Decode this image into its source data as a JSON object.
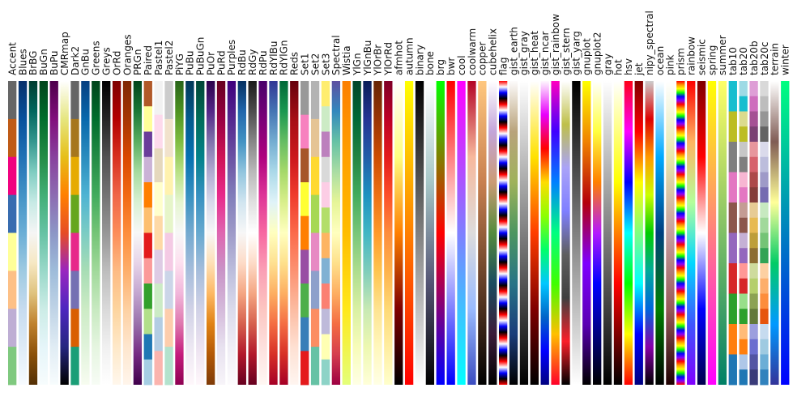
{
  "chart_data": {
    "type": "heatmap",
    "title": "",
    "xlabel": "",
    "ylabel": "",
    "orientation": "vertical-strips",
    "colormaps": [
      {
        "name": "Accent",
        "kind": "seg",
        "colors": [
          "#666666",
          "#bf5b17",
          "#f0027f",
          "#386cb0",
          "#ffff99",
          "#fdc086",
          "#beaed4",
          "#7fc97f"
        ]
      },
      {
        "name": "Blues",
        "kind": "grad",
        "colors": [
          "#08306b",
          "#08519c",
          "#2171b5",
          "#4292c6",
          "#6baed6",
          "#9ecae1",
          "#c6dbef",
          "#deebf7",
          "#f7fbff"
        ]
      },
      {
        "name": "BrBG",
        "kind": "grad",
        "colors": [
          "#003c30",
          "#01665e",
          "#35978f",
          "#80cdc1",
          "#c7eae5",
          "#f5f5f5",
          "#f6e8c3",
          "#dfc27d",
          "#bf812d",
          "#8c510a",
          "#543005"
        ]
      },
      {
        "name": "BuGn",
        "kind": "grad",
        "colors": [
          "#00441b",
          "#006d2c",
          "#238b45",
          "#41ae76",
          "#66c2a4",
          "#99d8c9",
          "#ccece6",
          "#e5f5f9",
          "#f7fcfd"
        ]
      },
      {
        "name": "BuPu",
        "kind": "grad",
        "colors": [
          "#4d004b",
          "#810f7c",
          "#88419d",
          "#8c6bb1",
          "#8c96c6",
          "#9ebcda",
          "#bfd3e6",
          "#e0ecf4",
          "#f7fcfd"
        ]
      },
      {
        "name": "CMRmap",
        "kind": "grad",
        "colors": [
          "#ffffff",
          "#e6e680",
          "#e6bf1a",
          "#ff8000",
          "#e64d26",
          "#9926bf",
          "#4d26bf",
          "#262680",
          "#000000"
        ]
      },
      {
        "name": "Dark2",
        "kind": "seg",
        "colors": [
          "#666666",
          "#a6761d",
          "#e6ab02",
          "#66a61e",
          "#e7298a",
          "#7570b3",
          "#d95f02",
          "#1b9e77"
        ]
      },
      {
        "name": "GnBu",
        "kind": "grad",
        "colors": [
          "#084081",
          "#0868ac",
          "#2b8cbe",
          "#4eb3d3",
          "#7bccc4",
          "#a8ddb5",
          "#ccebc5",
          "#e0f3db",
          "#f7fcf0"
        ]
      },
      {
        "name": "Greens",
        "kind": "grad",
        "colors": [
          "#00441b",
          "#006d2c",
          "#238b45",
          "#41ab5d",
          "#74c476",
          "#a1d99b",
          "#c7e9c0",
          "#e5f5e0",
          "#f7fcf5"
        ]
      },
      {
        "name": "Greys",
        "kind": "grad",
        "colors": [
          "#000000",
          "#252525",
          "#525252",
          "#737373",
          "#969696",
          "#bdbdbd",
          "#d9d9d9",
          "#f0f0f0",
          "#ffffff"
        ]
      },
      {
        "name": "OrRd",
        "kind": "grad",
        "colors": [
          "#7f0000",
          "#b30000",
          "#d7301f",
          "#ef6548",
          "#fc8d59",
          "#fdbb84",
          "#fdd49e",
          "#fee8c8",
          "#fff7ec"
        ]
      },
      {
        "name": "Oranges",
        "kind": "grad",
        "colors": [
          "#7f2704",
          "#a63603",
          "#d94801",
          "#f16913",
          "#fd8d3c",
          "#fdae6b",
          "#fdd0a2",
          "#fee6ce",
          "#fff5eb"
        ]
      },
      {
        "name": "PRGn",
        "kind": "grad",
        "colors": [
          "#00441b",
          "#1b7837",
          "#5aae61",
          "#a6dba0",
          "#d9f0d3",
          "#f7f7f7",
          "#e7d4e8",
          "#c2a5cf",
          "#9970ab",
          "#762a83",
          "#40004b"
        ]
      },
      {
        "name": "Paired",
        "kind": "seg",
        "colors": [
          "#b15928",
          "#ffff99",
          "#6a3d9a",
          "#cab2d6",
          "#ff7f00",
          "#fdbf6f",
          "#e31a1c",
          "#fb9a99",
          "#33a02c",
          "#b2df8a",
          "#1f78b4",
          "#a6cee3"
        ]
      },
      {
        "name": "Pastel1",
        "kind": "seg",
        "colors": [
          "#f2f2f2",
          "#fddaec",
          "#e5d8bd",
          "#ffffcc",
          "#fed9a6",
          "#decbe4",
          "#ccebc5",
          "#b3cde3",
          "#fbb4ae"
        ]
      },
      {
        "name": "Pastel2",
        "kind": "seg",
        "colors": [
          "#cccccc",
          "#f1e2cc",
          "#fff2ae",
          "#e6f5c9",
          "#f4cae4",
          "#cbd5e8",
          "#fdcdac",
          "#b3e2cd"
        ]
      },
      {
        "name": "PiYG",
        "kind": "grad",
        "colors": [
          "#276419",
          "#4d9221",
          "#7fbc41",
          "#b8e186",
          "#e6f5d0",
          "#f7f7f7",
          "#fde0ef",
          "#f1b6da",
          "#de77ae",
          "#c51b7d",
          "#8e0152"
        ]
      },
      {
        "name": "PuBu",
        "kind": "grad",
        "colors": [
          "#023858",
          "#045a8d",
          "#0570b0",
          "#3690c0",
          "#74a9cf",
          "#a6bddb",
          "#d0d1e6",
          "#ece7f2",
          "#fff7fb"
        ]
      },
      {
        "name": "PuBuGn",
        "kind": "grad",
        "colors": [
          "#014636",
          "#016c59",
          "#02818a",
          "#3690c0",
          "#67a9cf",
          "#a6bddb",
          "#d0d1e6",
          "#ece2f0",
          "#fff7fb"
        ]
      },
      {
        "name": "PuOr",
        "kind": "grad",
        "colors": [
          "#2d004b",
          "#542788",
          "#8073ac",
          "#b2abd2",
          "#d8daeb",
          "#f7f7f7",
          "#fee0b6",
          "#fdb863",
          "#e08214",
          "#b35806",
          "#7f3b08"
        ]
      },
      {
        "name": "PuRd",
        "kind": "grad",
        "colors": [
          "#67001f",
          "#980043",
          "#ce1256",
          "#e7298a",
          "#df65b0",
          "#c994c7",
          "#d4b9da",
          "#e7e1ef",
          "#f7f4f9"
        ]
      },
      {
        "name": "Purples",
        "kind": "grad",
        "colors": [
          "#3f007d",
          "#54278f",
          "#6a51a3",
          "#807dba",
          "#9e9ac8",
          "#bcbddc",
          "#dadaeb",
          "#efedf5",
          "#fcfbfd"
        ]
      },
      {
        "name": "RdBu",
        "kind": "grad",
        "colors": [
          "#053061",
          "#2166ac",
          "#4393c3",
          "#92c5de",
          "#d1e5f0",
          "#f7f7f7",
          "#fddbc7",
          "#f4a582",
          "#d6604d",
          "#b2182b",
          "#67001f"
        ]
      },
      {
        "name": "RdGy",
        "kind": "grad",
        "colors": [
          "#1a1a1a",
          "#4d4d4d",
          "#878787",
          "#bababa",
          "#e0e0e0",
          "#ffffff",
          "#fddbc7",
          "#f4a582",
          "#d6604d",
          "#b2182b",
          "#67001f"
        ]
      },
      {
        "name": "RdPu",
        "kind": "grad",
        "colors": [
          "#49006a",
          "#7a0177",
          "#ae017e",
          "#dd3497",
          "#f768a1",
          "#fa9fb5",
          "#fcc5c0",
          "#fde0dd",
          "#fff7f3"
        ]
      },
      {
        "name": "RdYlBu",
        "kind": "grad",
        "colors": [
          "#313695",
          "#4575b4",
          "#74add1",
          "#abd9e9",
          "#e0f3f8",
          "#ffffbf",
          "#fee090",
          "#fdae61",
          "#f46d43",
          "#d73027",
          "#a50026"
        ]
      },
      {
        "name": "RdYlGn",
        "kind": "grad",
        "colors": [
          "#006837",
          "#1a9850",
          "#66bd63",
          "#a6d96a",
          "#d9ef8b",
          "#ffffbf",
          "#fee08b",
          "#fdae61",
          "#f46d43",
          "#d73027",
          "#a50026"
        ]
      },
      {
        "name": "Reds",
        "kind": "grad",
        "colors": [
          "#67000d",
          "#a50f15",
          "#cb181d",
          "#ef3b2c",
          "#fb6a4a",
          "#fc9272",
          "#fcbba1",
          "#fee0d2",
          "#fff5f0"
        ]
      },
      {
        "name": "Set1",
        "kind": "seg",
        "colors": [
          "#999999",
          "#f781bf",
          "#a65628",
          "#ffff33",
          "#ff7f00",
          "#984ea3",
          "#4daf4a",
          "#377eb8",
          "#e41a1c"
        ]
      },
      {
        "name": "Set2",
        "kind": "seg",
        "colors": [
          "#b3b3b3",
          "#e5c494",
          "#ffd92f",
          "#a6d854",
          "#e78ac3",
          "#8da0cb",
          "#fc8d62",
          "#66c2a5"
        ]
      },
      {
        "name": "Set3",
        "kind": "seg",
        "colors": [
          "#ffed6f",
          "#ccebc5",
          "#bc80bd",
          "#d9d9d9",
          "#fccde5",
          "#b3de69",
          "#fdb462",
          "#80b1d3",
          "#fb8072",
          "#bebada",
          "#ffffb3",
          "#8dd3c7"
        ]
      },
      {
        "name": "Spectral",
        "kind": "grad",
        "colors": [
          "#5e4fa2",
          "#3288bd",
          "#66c2a5",
          "#abdda4",
          "#e6f598",
          "#ffffbf",
          "#fee08b",
          "#fdae61",
          "#f46d43",
          "#d53e4f",
          "#9e0142"
        ]
      },
      {
        "name": "Wistia",
        "kind": "grad",
        "colors": [
          "#fc7f00",
          "#ffa000",
          "#ffbd00",
          "#ffe81a",
          "#e4ff7a"
        ]
      },
      {
        "name": "YlGn",
        "kind": "grad",
        "colors": [
          "#004529",
          "#006837",
          "#238443",
          "#41ab5d",
          "#78c679",
          "#addd8e",
          "#d9f0a3",
          "#f7fcb9",
          "#ffffe5"
        ]
      },
      {
        "name": "YlGnBu",
        "kind": "grad",
        "colors": [
          "#081d58",
          "#253494",
          "#225ea8",
          "#1d91c0",
          "#41b6c4",
          "#7fcdbb",
          "#c7e9b4",
          "#edf8b1",
          "#ffffd9"
        ]
      },
      {
        "name": "YlOrBr",
        "kind": "grad",
        "colors": [
          "#662506",
          "#993404",
          "#cc4c02",
          "#ec7014",
          "#fe9929",
          "#fec44f",
          "#fee391",
          "#fff7bc",
          "#ffffe5"
        ]
      },
      {
        "name": "YlOrRd",
        "kind": "grad",
        "colors": [
          "#800026",
          "#bd0026",
          "#e31a1c",
          "#fc4e2a",
          "#fd8d3c",
          "#feb24c",
          "#fed976",
          "#ffeda0",
          "#ffffcc"
        ]
      },
      {
        "name": "afmhot",
        "kind": "grad",
        "colors": [
          "#ffffff",
          "#ffff80",
          "#ff8000",
          "#800000",
          "#000000"
        ]
      },
      {
        "name": "autumn",
        "kind": "grad",
        "colors": [
          "#ffff00",
          "#ff0000"
        ]
      },
      {
        "name": "binary",
        "kind": "grad",
        "colors": [
          "#000000",
          "#ffffff"
        ]
      },
      {
        "name": "bone",
        "kind": "grad",
        "colors": [
          "#ffffff",
          "#a7c7c7",
          "#545474",
          "#000000"
        ]
      },
      {
        "name": "brg",
        "kind": "grad",
        "colors": [
          "#00ff00",
          "#ff0000",
          "#0000ff"
        ]
      },
      {
        "name": "bwr",
        "kind": "grad",
        "colors": [
          "#ff0000",
          "#ffffff",
          "#0000ff"
        ]
      },
      {
        "name": "cool",
        "kind": "grad",
        "colors": [
          "#ff00ff",
          "#00ffff"
        ]
      },
      {
        "name": "coolwarm",
        "kind": "grad",
        "colors": [
          "#b40426",
          "#f7b89c",
          "#dddcdc",
          "#9abbff",
          "#3b4cc0"
        ]
      },
      {
        "name": "copper",
        "kind": "grad",
        "colors": [
          "#ffc77f",
          "#c88050",
          "#643f28",
          "#000000"
        ]
      },
      {
        "name": "cubehelix",
        "kind": "grad",
        "colors": [
          "#ffffff",
          "#c3a5d9",
          "#cb9b75",
          "#548b3d",
          "#1a4c5f",
          "#3b1c3a",
          "#000000"
        ]
      },
      {
        "name": "flag",
        "kind": "repeat",
        "repeats": 13,
        "colors": [
          "#ff0000",
          "#ffffff",
          "#0000ff",
          "#000000",
          "#ff0000"
        ]
      },
      {
        "name": "gist_earth",
        "kind": "grad",
        "colors": [
          "#fdfbfb",
          "#b9a37b",
          "#9fb25b",
          "#4c9660",
          "#287486",
          "#1a3c7a",
          "#000000"
        ]
      },
      {
        "name": "gist_gray",
        "kind": "grad",
        "colors": [
          "#ffffff",
          "#000000"
        ]
      },
      {
        "name": "gist_heat",
        "kind": "grad",
        "colors": [
          "#ffffff",
          "#ffe100",
          "#ff3d00",
          "#800000",
          "#000000"
        ]
      },
      {
        "name": "gist_ncar",
        "kind": "grad",
        "colors": [
          "#fef8fe",
          "#e800fc",
          "#ff0000",
          "#ffdd00",
          "#8cff00",
          "#00ff6a",
          "#00c7ff",
          "#0064c8",
          "#0000ff",
          "#000080"
        ]
      },
      {
        "name": "gist_rainbow",
        "kind": "grad",
        "colors": [
          "#ff00bf",
          "#4000ff",
          "#0080ff",
          "#00ff80",
          "#40ff00",
          "#ffbf00",
          "#ff0029"
        ]
      },
      {
        "name": "gist_stern",
        "kind": "grad",
        "colors": [
          "#ffffff",
          "#bfc04a",
          "#aaa3f8",
          "#7f7fff",
          "#5f5f5f",
          "#404040",
          "#fa1f2a",
          "#000000"
        ]
      },
      {
        "name": "gist_yarg",
        "kind": "grad",
        "colors": [
          "#000000",
          "#ffffff"
        ]
      },
      {
        "name": "gnuplot",
        "kind": "grad",
        "colors": [
          "#ffff00",
          "#f08200",
          "#b4000a",
          "#7f00ff",
          "#5a00b4",
          "#000000"
        ]
      },
      {
        "name": "gnuplot2",
        "kind": "grad",
        "colors": [
          "#ffffff",
          "#ffff40",
          "#ff8000",
          "#b41afe",
          "#0000ff",
          "#000080",
          "#000000"
        ]
      },
      {
        "name": "gray",
        "kind": "grad",
        "colors": [
          "#ffffff",
          "#000000"
        ]
      },
      {
        "name": "hot",
        "kind": "grad",
        "colors": [
          "#ffffff",
          "#ffff00",
          "#ff0000",
          "#000000"
        ]
      },
      {
        "name": "hsv",
        "kind": "grad",
        "colors": [
          "#ff0018",
          "#ff00ff",
          "#0000ff",
          "#00ffff",
          "#00ff00",
          "#ffff00",
          "#ff0000"
        ]
      },
      {
        "name": "jet",
        "kind": "grad",
        "colors": [
          "#800000",
          "#ff0000",
          "#ffff00",
          "#80ff80",
          "#00ffff",
          "#0000ff",
          "#000080"
        ]
      },
      {
        "name": "nipy_spectral",
        "kind": "grad",
        "colors": [
          "#cccccc",
          "#dd0000",
          "#ff9900",
          "#ccff00",
          "#00cc00",
          "#00aa99",
          "#0066dd",
          "#8800aa",
          "#000000"
        ]
      },
      {
        "name": "ocean",
        "kind": "grad",
        "colors": [
          "#ffffff",
          "#00aaff",
          "#003f80",
          "#008000",
          "#000000"
        ]
      },
      {
        "name": "pink",
        "kind": "grad",
        "colors": [
          "#ffffff",
          "#e7e7ab",
          "#c59e9e",
          "#985a5a",
          "#1e0000"
        ]
      },
      {
        "name": "prism",
        "kind": "repeat",
        "repeats": 13,
        "colors": [
          "#ff0000",
          "#ff9900",
          "#ffff00",
          "#00ff00",
          "#0000ff",
          "#8800ff",
          "#ff0000"
        ]
      },
      {
        "name": "rainbow",
        "kind": "grad",
        "colors": [
          "#ff0000",
          "#ffb360",
          "#b4ff9a",
          "#00d7ff",
          "#3f55ff",
          "#8000ff"
        ]
      },
      {
        "name": "seismic",
        "kind": "grad",
        "colors": [
          "#800000",
          "#ff0000",
          "#ffffff",
          "#0000ff",
          "#00004d"
        ]
      },
      {
        "name": "spring",
        "kind": "grad",
        "colors": [
          "#ffff00",
          "#ff00ff"
        ]
      },
      {
        "name": "summer",
        "kind": "grad",
        "colors": [
          "#ffff66",
          "#008066"
        ]
      },
      {
        "name": "tab10",
        "kind": "seg",
        "colors": [
          "#17becf",
          "#bcbd22",
          "#7f7f7f",
          "#e377c2",
          "#8c564b",
          "#9467bd",
          "#d62728",
          "#2ca02c",
          "#ff7f0e",
          "#1f77b4"
        ]
      },
      {
        "name": "tab20",
        "kind": "seg",
        "colors": [
          "#9edae5",
          "#17becf",
          "#dbdb8d",
          "#bcbd22",
          "#c7c7c7",
          "#7f7f7f",
          "#f7b6d2",
          "#e377c2",
          "#c49c94",
          "#8c564b",
          "#c5b0d5",
          "#9467bd",
          "#ff9896",
          "#d62728",
          "#98df8a",
          "#2ca02c",
          "#ffbb78",
          "#ff7f0e",
          "#aec7e8",
          "#1f77b4"
        ]
      },
      {
        "name": "tab20b",
        "kind": "seg",
        "colors": [
          "#de9ed6",
          "#ce6dbd",
          "#a55194",
          "#7b4173",
          "#e7969c",
          "#d6616b",
          "#ad494a",
          "#843c39",
          "#e7cb94",
          "#e7ba52",
          "#bd9e39",
          "#8c6d31",
          "#cedb9c",
          "#b5cf6b",
          "#8ca252",
          "#637939",
          "#9c9ede",
          "#6b6ecf",
          "#5254a3",
          "#393b79"
        ]
      },
      {
        "name": "tab20c",
        "kind": "seg",
        "colors": [
          "#d9d9d9",
          "#bdbdbd",
          "#969696",
          "#636363",
          "#dadaeb",
          "#bcbddc",
          "#9e9ac8",
          "#756bb1",
          "#c7e9c0",
          "#a1d99b",
          "#74c476",
          "#31a354",
          "#fdd0a2",
          "#fdae6b",
          "#fd8d3c",
          "#e6550d",
          "#c6dbef",
          "#9ecae1",
          "#6baed6",
          "#3182bd"
        ]
      },
      {
        "name": "terrain",
        "kind": "grad",
        "colors": [
          "#ffffff",
          "#805c54",
          "#ffff99",
          "#00cc66",
          "#0099ff",
          "#333399"
        ]
      },
      {
        "name": "winter",
        "kind": "grad",
        "colors": [
          "#00ff80",
          "#0000ff"
        ]
      }
    ]
  }
}
